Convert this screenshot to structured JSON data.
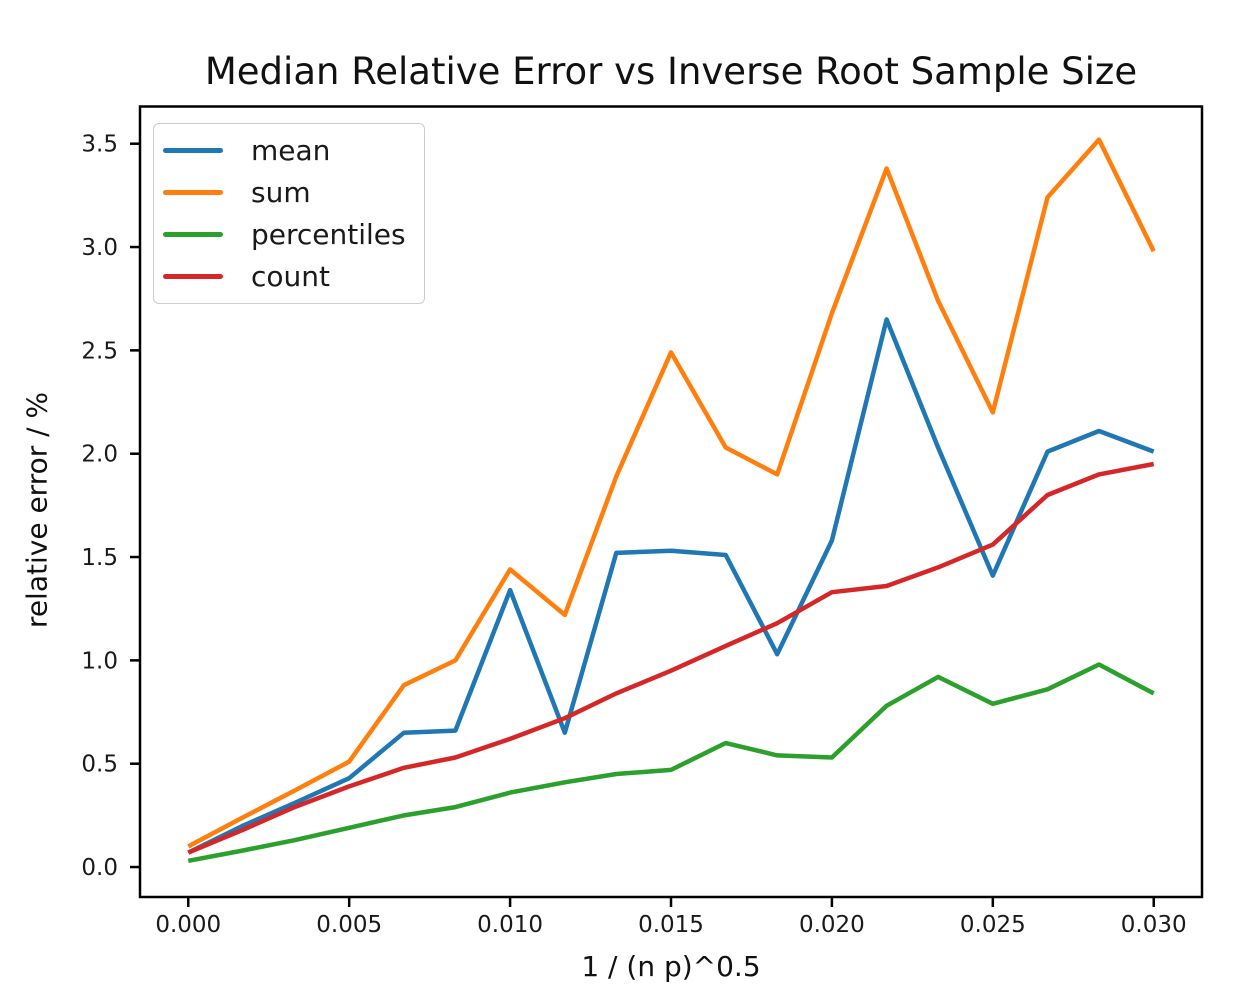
{
  "chart_data": {
    "type": "line",
    "title": "Median Relative Error vs Inverse Root Sample Size",
    "xlabel": "1 / (n p)^0.5",
    "ylabel": "relative error / %",
    "grid": false,
    "legend_position": "upper left",
    "xlim": [
      -0.0015,
      0.0315
    ],
    "ylim": [
      -0.145,
      3.68
    ],
    "xticks": {
      "values": [
        0.0,
        0.005,
        0.01,
        0.015,
        0.02,
        0.025,
        0.03
      ],
      "labels": [
        "0.000",
        "0.005",
        "0.010",
        "0.015",
        "0.020",
        "0.025",
        "0.030"
      ]
    },
    "yticks": {
      "values": [
        0.0,
        0.5,
        1.0,
        1.5,
        2.0,
        2.5,
        3.0,
        3.5
      ],
      "labels": [
        "0.0",
        "0.5",
        "1.0",
        "1.5",
        "2.0",
        "2.5",
        "3.0",
        "3.5"
      ]
    },
    "x": [
      0.0,
      0.0017,
      0.0033,
      0.005,
      0.0067,
      0.0083,
      0.01,
      0.0117,
      0.0133,
      0.015,
      0.0167,
      0.0183,
      0.02,
      0.0217,
      0.0233,
      0.025,
      0.0267,
      0.0283,
      0.03
    ],
    "series": [
      {
        "name": "mean",
        "color": "#1f77b4",
        "values": [
          0.07,
          0.2,
          0.31,
          0.43,
          0.65,
          0.66,
          1.34,
          0.65,
          1.52,
          1.53,
          1.51,
          1.03,
          1.58,
          2.65,
          2.03,
          1.41,
          2.01,
          2.11,
          2.01
        ]
      },
      {
        "name": "sum",
        "color": "#ff7f0e",
        "values": [
          0.1,
          0.24,
          0.37,
          0.51,
          0.88,
          1.0,
          1.44,
          1.22,
          1.89,
          2.49,
          2.03,
          1.9,
          2.68,
          3.38,
          2.74,
          2.2,
          3.24,
          3.52,
          2.98
        ]
      },
      {
        "name": "percentiles",
        "color": "#2ca02c",
        "values": [
          0.03,
          0.08,
          0.13,
          0.19,
          0.25,
          0.29,
          0.36,
          0.41,
          0.45,
          0.47,
          0.6,
          0.54,
          0.53,
          0.78,
          0.92,
          0.79,
          0.86,
          0.98,
          0.84
        ]
      },
      {
        "name": "count",
        "color": "#d62728",
        "values": [
          0.07,
          0.18,
          0.29,
          0.39,
          0.48,
          0.53,
          0.62,
          0.72,
          0.84,
          0.95,
          1.07,
          1.18,
          1.33,
          1.36,
          1.45,
          1.56,
          1.8,
          1.9,
          1.95
        ]
      }
    ],
    "axis_color": "#000000",
    "tick_label_color": "#1a1a1a"
  }
}
